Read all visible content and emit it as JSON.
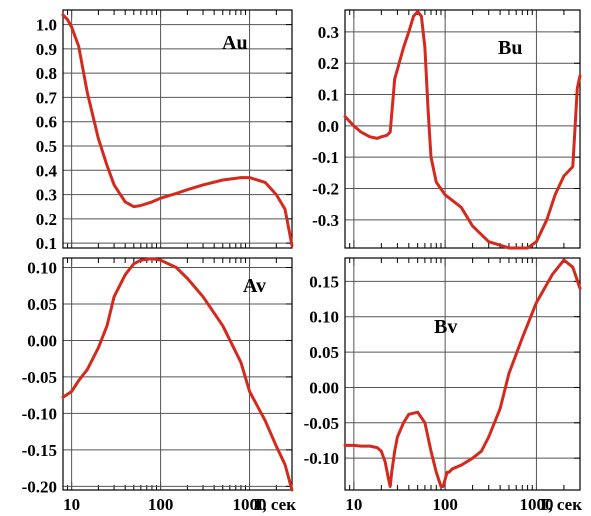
{
  "chart_data": [
    {
      "id": "Au",
      "type": "line",
      "label": "Au",
      "xscale": "log",
      "xlim": [
        8,
        3000
      ],
      "ylim": [
        0.08,
        1.06
      ],
      "yticks": [
        0.1,
        0.2,
        0.3,
        0.4,
        0.5,
        0.6,
        0.7,
        0.8,
        0.9,
        1.0
      ],
      "ytick_labels": [
        "0.1",
        "0.2",
        "0.3",
        "0.4",
        "0.5",
        "0.6",
        "0.7",
        "0.8",
        "0.9",
        "1.0"
      ],
      "color": "#d42a1e",
      "x": [
        8,
        9,
        10,
        12,
        15,
        20,
        25,
        30,
        40,
        50,
        60,
        80,
        100,
        150,
        200,
        300,
        500,
        800,
        1000,
        1500,
        2000,
        2500,
        3000
      ],
      "y": [
        1.04,
        1.02,
        0.99,
        0.91,
        0.72,
        0.53,
        0.42,
        0.34,
        0.27,
        0.25,
        0.255,
        0.27,
        0.285,
        0.305,
        0.32,
        0.34,
        0.36,
        0.37,
        0.37,
        0.35,
        0.3,
        0.24,
        0.09
      ]
    },
    {
      "id": "Bu",
      "type": "line",
      "label": "Bu",
      "xscale": "log",
      "xlim": [
        8,
        3000
      ],
      "ylim": [
        -0.39,
        0.37
      ],
      "yticks": [
        -0.3,
        -0.2,
        -0.1,
        0.0,
        0.1,
        0.2,
        0.3
      ],
      "ytick_labels": [
        "-0.3",
        "-0.2",
        "-0.1",
        "0.0",
        "0.1",
        "0.2",
        "0.3"
      ],
      "color": "#d42a1e",
      "x": [
        8,
        10,
        12,
        15,
        18,
        20,
        23,
        25,
        28,
        30,
        35,
        40,
        45,
        50,
        55,
        60,
        65,
        70,
        80,
        100,
        150,
        200,
        300,
        500,
        800,
        1000,
        1300,
        1600,
        2000,
        2500,
        2800,
        3000
      ],
      "y": [
        0.03,
        0.0,
        -0.02,
        -0.035,
        -0.04,
        -0.035,
        -0.03,
        -0.02,
        0.15,
        0.18,
        0.25,
        0.3,
        0.35,
        0.365,
        0.35,
        0.25,
        0.05,
        -0.1,
        -0.18,
        -0.22,
        -0.26,
        -0.32,
        -0.37,
        -0.39,
        -0.39,
        -0.37,
        -0.3,
        -0.22,
        -0.16,
        -0.13,
        0.12,
        0.16
      ]
    },
    {
      "id": "Av",
      "type": "line",
      "label": "Av",
      "xscale": "log",
      "xlim": [
        8,
        3000
      ],
      "ylim": [
        -0.205,
        0.113
      ],
      "yticks": [
        -0.2,
        -0.15,
        -0.1,
        -0.05,
        0.0,
        0.05,
        0.1
      ],
      "ytick_labels": [
        "-0.20",
        "-0.15",
        "-0.10",
        "-0.05",
        "0.00",
        "0.05",
        "0.10"
      ],
      "color": "#d42a1e",
      "x": [
        8,
        10,
        12,
        15,
        20,
        25,
        30,
        40,
        50,
        60,
        80,
        100,
        150,
        200,
        300,
        500,
        800,
        1000,
        1500,
        2000,
        2500,
        3000
      ],
      "y": [
        -0.078,
        -0.07,
        -0.055,
        -0.04,
        -0.01,
        0.02,
        0.06,
        0.09,
        0.105,
        0.11,
        0.112,
        0.11,
        0.1,
        0.085,
        0.06,
        0.02,
        -0.03,
        -0.07,
        -0.11,
        -0.145,
        -0.17,
        -0.205
      ]
    },
    {
      "id": "Bv",
      "type": "line",
      "label": "Bv",
      "xscale": "log",
      "xlim": [
        8,
        3000
      ],
      "ylim": [
        -0.145,
        0.183
      ],
      "yticks": [
        -0.1,
        -0.05,
        0.0,
        0.05,
        0.1,
        0.15
      ],
      "ytick_labels": [
        "-0.10",
        "-0.05",
        "0.00",
        "0.05",
        "0.10",
        "0.15"
      ],
      "color": "#d42a1e",
      "x": [
        8,
        10,
        12,
        15,
        18,
        20,
        22,
        24,
        25,
        26,
        28,
        30,
        35,
        40,
        50,
        60,
        70,
        80,
        90,
        95,
        100,
        105,
        110,
        120,
        150,
        200,
        250,
        300,
        400,
        500,
        700,
        1000,
        1500,
        2000,
        2500,
        3000
      ],
      "y": [
        -0.082,
        -0.082,
        -0.083,
        -0.083,
        -0.085,
        -0.09,
        -0.105,
        -0.13,
        -0.14,
        -0.12,
        -0.09,
        -0.07,
        -0.05,
        -0.038,
        -0.035,
        -0.05,
        -0.09,
        -0.12,
        -0.14,
        -0.14,
        -0.13,
        -0.12,
        -0.12,
        -0.115,
        -0.11,
        -0.1,
        -0.09,
        -0.07,
        -0.03,
        0.02,
        0.07,
        0.12,
        0.16,
        0.18,
        0.17,
        0.14
      ]
    }
  ],
  "x_axis": {
    "ticks": [
      10,
      100,
      1000
    ],
    "tick_labels": [
      "10",
      "100",
      "1000"
    ],
    "title": "T, сек"
  }
}
